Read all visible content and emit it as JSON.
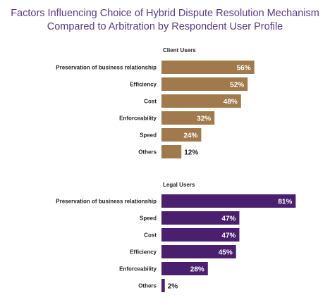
{
  "chart_data": {
    "type": "bar",
    "orientation": "horizontal",
    "title_lines": [
      "Factors Influencing Choice of Hybrid Dispute Resolution Mechanism",
      "Compared to Arbitration by Respondent User Profile"
    ],
    "xlim": [
      0,
      100
    ],
    "grid": false,
    "unit": "%",
    "panels": [
      {
        "name": "Client Users",
        "color": "#a07a4c",
        "categories": [
          "Preservation of business relationship",
          "Efficiency",
          "Cost",
          "Enforceability",
          "Speed",
          "Others"
        ],
        "values": [
          56,
          52,
          48,
          32,
          24,
          12
        ],
        "labels": [
          "56%",
          "52%",
          "48%",
          "32%",
          "24%",
          "12%"
        ]
      },
      {
        "name": "Legal Users",
        "color": "#4a1f6e",
        "categories": [
          "Preservation of business relationship",
          "Speed",
          "Cost",
          "Efficiency",
          "Enforceability",
          "Others"
        ],
        "values": [
          81,
          47,
          47,
          45,
          28,
          2
        ],
        "labels": [
          "81%",
          "47%",
          "47%",
          "45%",
          "28%",
          "2%"
        ]
      }
    ]
  }
}
